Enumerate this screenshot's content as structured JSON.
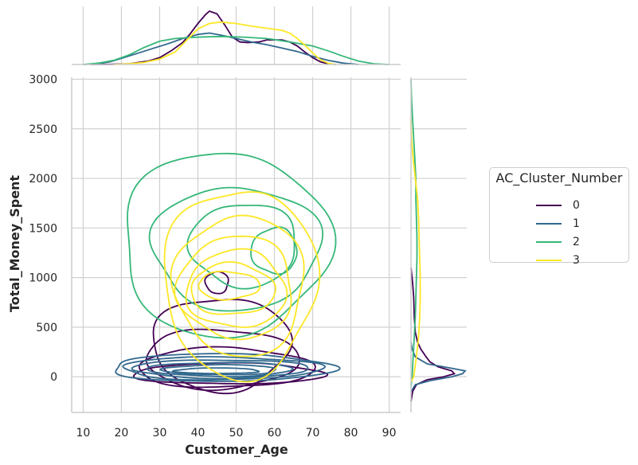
{
  "chart_data": {
    "type": "kde-joint",
    "xlabel": "Customer_Age",
    "ylabel": "Total_Money_Spent",
    "xlim": [
      7,
      93
    ],
    "ylim": [
      -360,
      3020
    ],
    "xticks": [
      10,
      20,
      30,
      40,
      50,
      60,
      70,
      80,
      90
    ],
    "yticks": [
      0,
      500,
      1000,
      1500,
      2000,
      2500,
      3000
    ],
    "grid": true,
    "legend": {
      "title": "AC_Cluster_Number",
      "placement": "right",
      "entries": [
        "0",
        "1",
        "2",
        "3"
      ]
    },
    "series": [
      {
        "name": "0",
        "color": "#440154",
        "contours": [
          {
            "cx": 48,
            "cy": 30,
            "rx": 25,
            "ry": 105
          },
          {
            "cx": 47,
            "cy": 90,
            "rx": 23,
            "ry": 200
          },
          {
            "cx": 46,
            "cy": 180,
            "rx": 20,
            "ry": 300
          },
          {
            "cx": 46,
            "cy": 330,
            "rx": 18,
            "ry": 470
          },
          {
            "cx": 45,
            "cy": 950,
            "rx": 3,
            "ry": 110
          }
        ],
        "marg_x": [
          [
            12,
            0
          ],
          [
            17,
            0.002
          ],
          [
            22,
            0.01
          ],
          [
            27,
            0.05
          ],
          [
            30,
            0.1
          ],
          [
            33,
            0.2
          ],
          [
            36,
            0.32
          ],
          [
            38,
            0.45
          ],
          [
            40,
            0.6
          ],
          [
            42,
            0.73
          ],
          [
            43,
            0.78
          ],
          [
            45,
            0.74
          ],
          [
            47,
            0.58
          ],
          [
            49,
            0.4
          ],
          [
            51,
            0.33
          ],
          [
            53,
            0.32
          ],
          [
            56,
            0.33
          ],
          [
            58,
            0.36
          ],
          [
            60,
            0.36
          ],
          [
            62,
            0.36
          ],
          [
            64,
            0.33
          ],
          [
            66,
            0.27
          ],
          [
            68,
            0.18
          ],
          [
            70,
            0.1
          ],
          [
            72,
            0.04
          ],
          [
            74,
            0.01
          ],
          [
            76,
            0
          ]
        ],
        "marg_y": [
          [
            -250,
            0
          ],
          [
            -150,
            0.03
          ],
          [
            -80,
            0.1
          ],
          [
            -30,
            0.3
          ],
          [
            0,
            0.6
          ],
          [
            30,
            0.8
          ],
          [
            60,
            0.75
          ],
          [
            100,
            0.5
          ],
          [
            150,
            0.35
          ],
          [
            200,
            0.28
          ],
          [
            280,
            0.18
          ],
          [
            350,
            0.12
          ],
          [
            450,
            0.08
          ],
          [
            600,
            0.06
          ],
          [
            800,
            0.05
          ],
          [
            950,
            0.03
          ],
          [
            1100,
            0
          ]
        ]
      },
      {
        "name": "1",
        "color": "#31688e",
        "contours": [
          {
            "cx": 46,
            "cy": 90,
            "rx": 29,
            "ry": 140
          },
          {
            "cx": 46,
            "cy": 85,
            "rx": 26,
            "ry": 115
          },
          {
            "cx": 46,
            "cy": 80,
            "rx": 23,
            "ry": 92
          },
          {
            "cx": 46,
            "cy": 75,
            "rx": 19,
            "ry": 70
          },
          {
            "cx": 46,
            "cy": 70,
            "rx": 15,
            "ry": 50
          },
          {
            "cx": 45,
            "cy": 60,
            "rx": 11,
            "ry": 28
          }
        ],
        "marg_x": [
          [
            10,
            0
          ],
          [
            14,
            0.01
          ],
          [
            17,
            0.04
          ],
          [
            20,
            0.09
          ],
          [
            24,
            0.16
          ],
          [
            28,
            0.23
          ],
          [
            32,
            0.3
          ],
          [
            36,
            0.38
          ],
          [
            40,
            0.44
          ],
          [
            43,
            0.46
          ],
          [
            46,
            0.43
          ],
          [
            50,
            0.38
          ],
          [
            54,
            0.33
          ],
          [
            58,
            0.29
          ],
          [
            62,
            0.24
          ],
          [
            66,
            0.19
          ],
          [
            70,
            0.12
          ],
          [
            74,
            0.06
          ],
          [
            78,
            0.02
          ],
          [
            82,
            0
          ]
        ],
        "marg_y": [
          [
            -150,
            0
          ],
          [
            -80,
            0.08
          ],
          [
            -40,
            0.35
          ],
          [
            0,
            0.75
          ],
          [
            30,
            0.95
          ],
          [
            60,
            1.0
          ],
          [
            90,
            0.7
          ],
          [
            130,
            0.3
          ],
          [
            200,
            0.08
          ],
          [
            280,
            0.02
          ],
          [
            350,
            0
          ]
        ]
      },
      {
        "name": "2",
        "color": "#35b779",
        "contours": [
          {
            "cx": 47,
            "cy": 1340,
            "rx": 27,
            "ry": 930
          },
          {
            "cx": 50,
            "cy": 1300,
            "rx": 22,
            "ry": 620
          },
          {
            "cx": 52,
            "cy": 1330,
            "rx": 14,
            "ry": 420
          },
          {
            "cx": 60,
            "cy": 1270,
            "rx": 6,
            "ry": 230
          }
        ],
        "marg_x": [
          [
            10,
            0
          ],
          [
            14,
            0.02
          ],
          [
            18,
            0.06
          ],
          [
            22,
            0.14
          ],
          [
            26,
            0.25
          ],
          [
            30,
            0.34
          ],
          [
            34,
            0.38
          ],
          [
            40,
            0.4
          ],
          [
            46,
            0.41
          ],
          [
            52,
            0.4
          ],
          [
            58,
            0.38
          ],
          [
            64,
            0.33
          ],
          [
            70,
            0.27
          ],
          [
            74,
            0.2
          ],
          [
            78,
            0.12
          ],
          [
            82,
            0.05
          ],
          [
            86,
            0.01
          ],
          [
            90,
            0
          ]
        ],
        "marg_y": [
          [
            -100,
            0
          ],
          [
            0,
            0.02
          ],
          [
            200,
            0.04
          ],
          [
            400,
            0.06
          ],
          [
            600,
            0.08
          ],
          [
            800,
            0.09
          ],
          [
            1000,
            0.1
          ],
          [
            1200,
            0.11
          ],
          [
            1400,
            0.11
          ],
          [
            1600,
            0.1
          ],
          [
            1800,
            0.09
          ],
          [
            2000,
            0.09
          ],
          [
            2200,
            0.07
          ],
          [
            2400,
            0.05
          ],
          [
            2600,
            0.03
          ],
          [
            2800,
            0.01
          ],
          [
            3000,
            0
          ]
        ]
      },
      {
        "name": "3",
        "color": "#fde725",
        "contours": [
          {
            "cx": 51,
            "cy": 950,
            "rx": 20,
            "ry": 950
          },
          {
            "cx": 51,
            "cy": 920,
            "rx": 17,
            "ry": 710
          },
          {
            "cx": 50,
            "cy": 900,
            "rx": 15,
            "ry": 520
          },
          {
            "cx": 50,
            "cy": 880,
            "rx": 13,
            "ry": 390
          },
          {
            "cx": 49,
            "cy": 880,
            "rx": 11,
            "ry": 260
          },
          {
            "cx": 48,
            "cy": 920,
            "rx": 8,
            "ry": 140
          }
        ],
        "marg_x": [
          [
            18,
            0
          ],
          [
            22,
            0.01
          ],
          [
            26,
            0.03
          ],
          [
            30,
            0.08
          ],
          [
            34,
            0.18
          ],
          [
            37,
            0.35
          ],
          [
            40,
            0.52
          ],
          [
            43,
            0.6
          ],
          [
            46,
            0.62
          ],
          [
            50,
            0.6
          ],
          [
            54,
            0.56
          ],
          [
            58,
            0.53
          ],
          [
            62,
            0.5
          ],
          [
            64,
            0.46
          ],
          [
            66,
            0.38
          ],
          [
            68,
            0.28
          ],
          [
            70,
            0.17
          ],
          [
            72,
            0.07
          ],
          [
            74,
            0.02
          ],
          [
            76,
            0
          ]
        ],
        "marg_y": [
          [
            -50,
            0
          ],
          [
            0,
            0.05
          ],
          [
            200,
            0.1
          ],
          [
            400,
            0.14
          ],
          [
            600,
            0.16
          ],
          [
            800,
            0.17
          ],
          [
            1000,
            0.17
          ],
          [
            1200,
            0.16
          ],
          [
            1400,
            0.15
          ],
          [
            1600,
            0.14
          ],
          [
            1800,
            0.12
          ],
          [
            2000,
            0.08
          ],
          [
            2200,
            0.04
          ],
          [
            2400,
            0.01
          ],
          [
            2600,
            0
          ]
        ]
      }
    ]
  }
}
